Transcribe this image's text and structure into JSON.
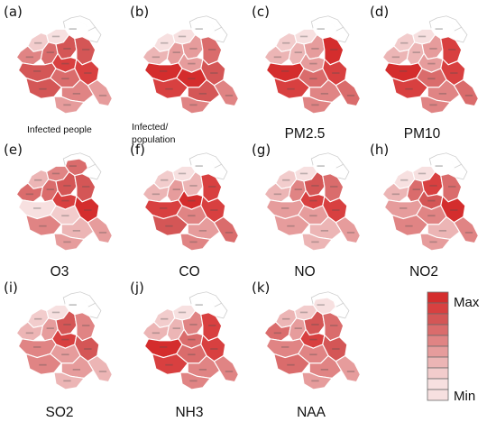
{
  "panels": [
    {
      "label": "(a)",
      "caption": "Infected people",
      "levels": [
        0,
        1,
        2,
        5,
        6,
        7,
        7,
        8,
        8,
        7,
        6,
        7,
        5,
        4,
        4
      ]
    },
    {
      "label": "(b)",
      "caption": "Infected/\npopulation",
      "levels": [
        0,
        1,
        1,
        3,
        4,
        4,
        6,
        4,
        7,
        9,
        9,
        8,
        7,
        5,
        5
      ]
    },
    {
      "label": "(c)",
      "caption": "PM2.5",
      "levels": [
        0,
        1,
        2,
        3,
        3,
        4,
        9,
        4,
        8,
        9,
        6,
        8,
        5,
        6,
        5
      ]
    },
    {
      "label": "(d)",
      "caption": "PM10",
      "levels": [
        0,
        1,
        2,
        3,
        3,
        4,
        8,
        4,
        8,
        9,
        6,
        8,
        5,
        6,
        5
      ]
    },
    {
      "label": "(e)",
      "caption": "O3",
      "levels": [
        6,
        5,
        3,
        6,
        6,
        7,
        7,
        8,
        9,
        1,
        2,
        5,
        3,
        4,
        4
      ]
    },
    {
      "label": "(f)",
      "caption": "CO",
      "levels": [
        0,
        1,
        2,
        3,
        4,
        3,
        8,
        9,
        8,
        8,
        5,
        7,
        4,
        6,
        5
      ]
    },
    {
      "label": "(g)",
      "caption": "NO",
      "levels": [
        0,
        1,
        2,
        3,
        5,
        7,
        6,
        8,
        8,
        4,
        4,
        4,
        3,
        4,
        3
      ]
    },
    {
      "label": "(h)",
      "caption": "NO2",
      "levels": [
        0,
        1,
        1,
        3,
        6,
        8,
        6,
        7,
        9,
        4,
        5,
        5,
        3,
        5,
        4
      ]
    },
    {
      "label": "(i)",
      "caption": "SO2",
      "levels": [
        0,
        1,
        2,
        3,
        4,
        7,
        5,
        8,
        7,
        5,
        4,
        5,
        4,
        3,
        3
      ]
    },
    {
      "label": "(j)",
      "caption": "NH3",
      "levels": [
        0,
        1,
        2,
        3,
        3,
        5,
        8,
        6,
        8,
        9,
        6,
        8,
        5,
        5,
        5
      ]
    },
    {
      "label": "(k)",
      "caption": "NAA",
      "levels": [
        1,
        2,
        3,
        6,
        4,
        7,
        6,
        8,
        7,
        5,
        5,
        6,
        5,
        4,
        4
      ]
    }
  ],
  "legend": {
    "max_label": "Max",
    "min_label": "Min",
    "steps": 10
  },
  "colors": {
    "scale": [
      "#ffffff",
      "#f7e0e0",
      "#f2cccc",
      "#ecb5b5",
      "#e69c9c",
      "#e08484",
      "#da6c6c",
      "#d45656",
      "#d84040",
      "#d42d2d"
    ],
    "border": "#ffffff",
    "outline": "#cfcfcf"
  }
}
